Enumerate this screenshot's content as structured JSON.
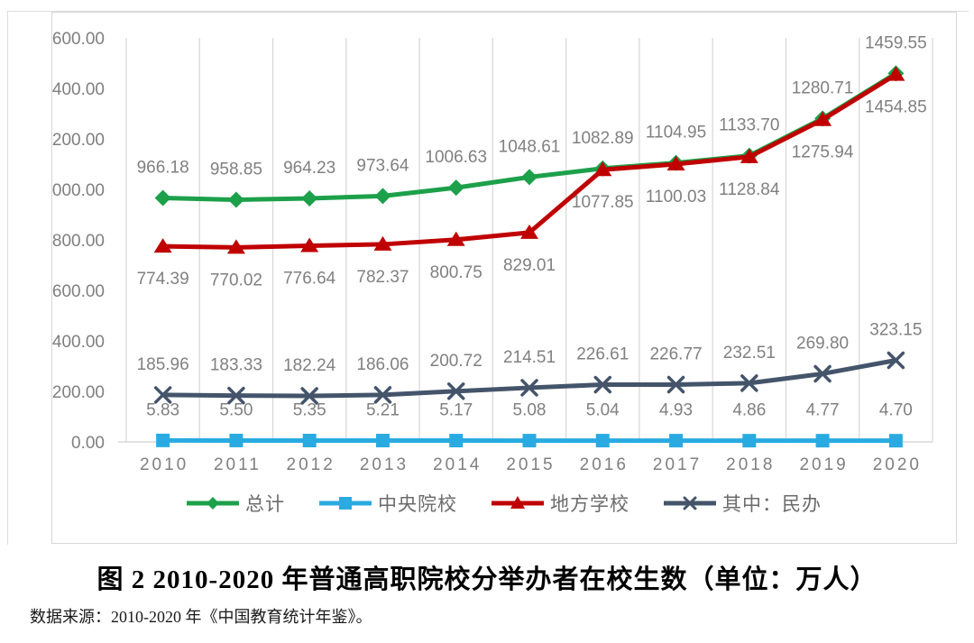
{
  "caption": {
    "title": "图 2 2010-2020 年普通高职院校分举办者在校生数（单位：万人）",
    "source": "数据来源：2010-2020 年《中国教育统计年鉴》。"
  },
  "colors": {
    "gridline": "#d9d9d9",
    "axis_line": "#d9d9d9",
    "tick_label": "#7f7f7f",
    "data_label": "#808080",
    "series_total": "#1ca04a",
    "series_central": "#29abe2",
    "series_local": "#c00000",
    "series_private": "#44546a"
  },
  "chart_data": {
    "type": "line",
    "title": "图 2 2010-2020 年普通高职院校分举办者在校生数（单位：万人）",
    "source_note": "数据来源：2010-2020 年《中国教育统计年鉴》。",
    "unit": "万人",
    "categories": [
      "2010",
      "2011",
      "2012",
      "2013",
      "2014",
      "2015",
      "2016",
      "2017",
      "2018",
      "2019",
      "2020"
    ],
    "series": [
      {
        "name": "总计",
        "color": "#1ca04a",
        "marker": "diamond",
        "label_position": "above",
        "values": [
          966.18,
          958.85,
          964.23,
          973.64,
          1006.63,
          1048.61,
          1082.89,
          1104.95,
          1133.7,
          1280.71,
          1459.55
        ]
      },
      {
        "name": "中央院校",
        "color": "#29abe2",
        "marker": "square",
        "label_position": "above",
        "values": [
          5.83,
          5.5,
          5.35,
          5.21,
          5.17,
          5.08,
          5.04,
          4.93,
          4.86,
          4.77,
          4.7
        ]
      },
      {
        "name": "地方学校",
        "color": "#c00000",
        "marker": "triangle",
        "label_position": "below",
        "values": [
          774.39,
          770.02,
          776.64,
          782.37,
          800.75,
          829.01,
          1077.85,
          1100.03,
          1128.84,
          1275.94,
          1454.85
        ]
      },
      {
        "name": "其中：民办",
        "color": "#44546a",
        "marker": "x",
        "label_position": "above",
        "values": [
          185.96,
          183.33,
          182.24,
          186.06,
          200.72,
          214.51,
          226.61,
          226.77,
          232.51,
          269.8,
          323.15
        ]
      }
    ],
    "xlabel": "",
    "ylabel": "",
    "ylim": [
      0,
      1600
    ],
    "y_tick_step": 200,
    "y_tick_decimals": 2,
    "data_label_decimals": 2,
    "grid": "vertical-only",
    "legend_position": "bottom"
  }
}
